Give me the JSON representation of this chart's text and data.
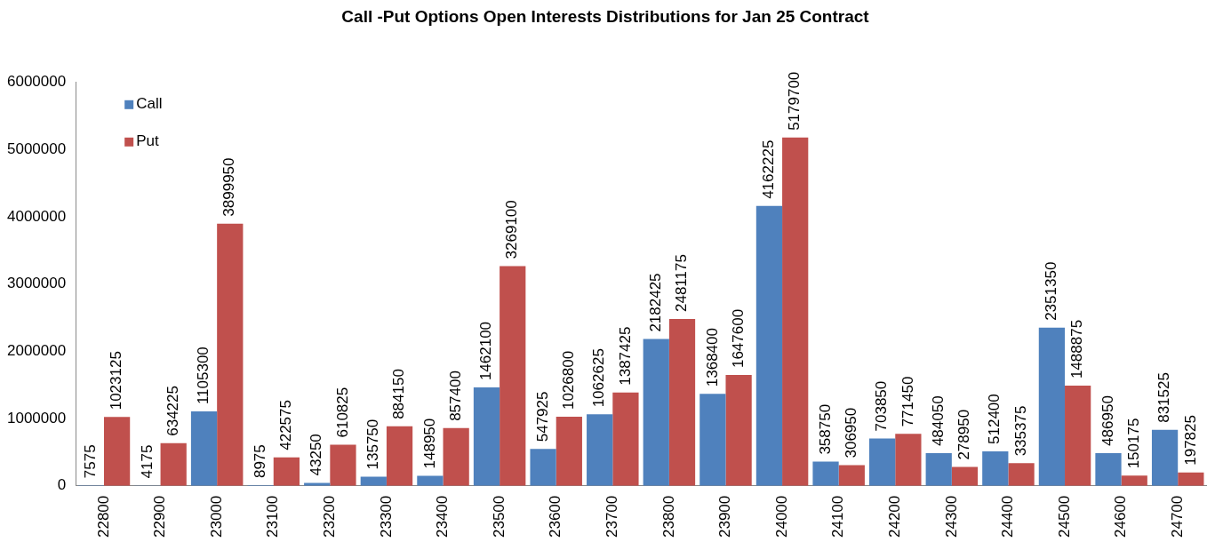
{
  "chart_data": {
    "type": "bar",
    "title": "Call -Put Options Open Interests Distributions for Jan 25 Contract",
    "categories": [
      "22800",
      "22900",
      "23000",
      "23100",
      "23200",
      "23300",
      "23400",
      "23500",
      "23600",
      "23700",
      "23800",
      "23900",
      "24000",
      "24100",
      "24200",
      "24300",
      "24400",
      "24500",
      "24600",
      "24700"
    ],
    "series": [
      {
        "name": "Call",
        "color": "#4f81bd",
        "values": [
          7575,
          4175,
          1105300,
          8975,
          43250,
          135750,
          148950,
          1462100,
          547925,
          1062625,
          2182425,
          1368400,
          4162225,
          358750,
          703850,
          484050,
          512400,
          2351350,
          486950,
          831525
        ]
      },
      {
        "name": "Put",
        "color": "#c0504d",
        "values": [
          1023125,
          634225,
          3899950,
          422575,
          610825,
          884150,
          857400,
          3269100,
          1026800,
          1387425,
          2481175,
          1647600,
          5179700,
          306950,
          771450,
          278950,
          335375,
          1488875,
          150175,
          197825
        ]
      }
    ],
    "ylim": [
      0,
      6000000
    ],
    "yticks": [
      0,
      1000000,
      2000000,
      3000000,
      4000000,
      5000000,
      6000000
    ],
    "legend": "top left",
    "data_labels": true
  }
}
